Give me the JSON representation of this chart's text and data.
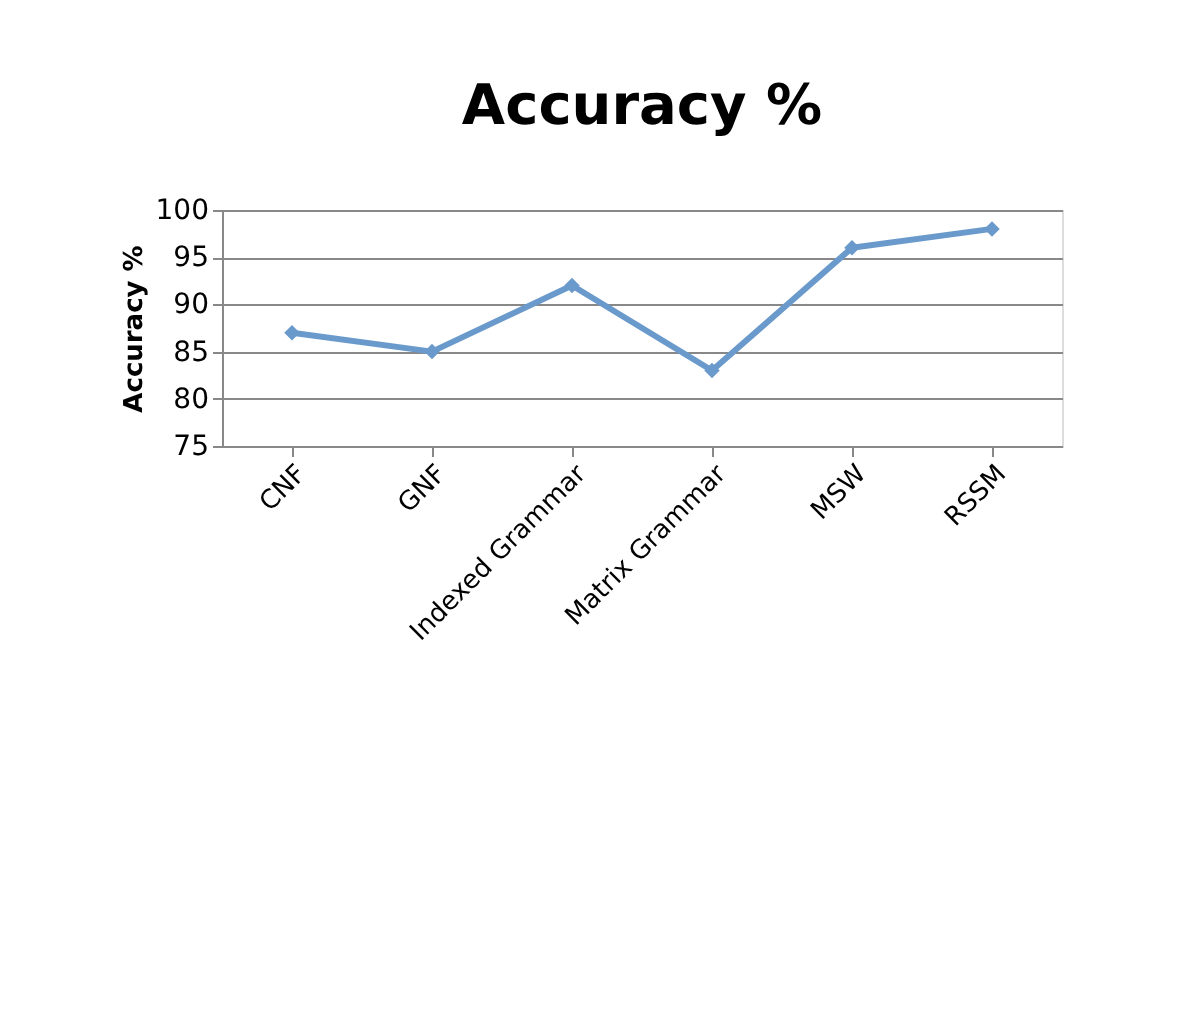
{
  "chart_data": {
    "type": "line",
    "title": "Accuracy %",
    "ylabel": "Accuracy  %",
    "categories": [
      "CNF",
      "GNF",
      "Indexed Grammar",
      "Matrix Grammar",
      "MSW",
      "RSSM"
    ],
    "series": [
      {
        "color": "#6a9acb",
        "values": [
          87,
          85,
          92,
          83,
          96,
          98
        ]
      }
    ],
    "ylim": [
      75,
      100
    ],
    "yticks": [
      75,
      80,
      85,
      90,
      95,
      100
    ],
    "grid": "y",
    "marker": "diamond",
    "line_style": "solid"
  }
}
